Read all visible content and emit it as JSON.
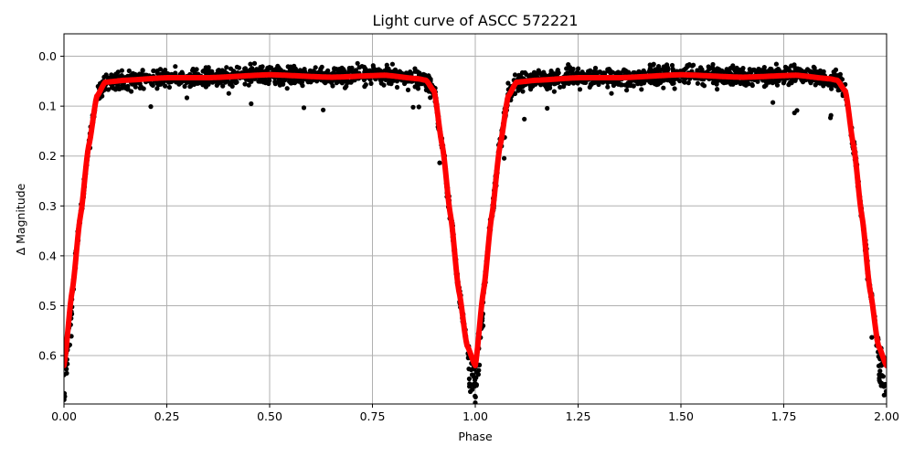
{
  "chart_data": {
    "type": "scatter",
    "title": "Light curve of ASCC 572221",
    "xlabel": "Phase",
    "ylabel": "Δ Magnitude",
    "xlim": [
      0.0,
      2.0
    ],
    "ylim": [
      0.697,
      -0.045
    ],
    "y_inverted": true,
    "grid": true,
    "legend": null,
    "x_ticks": [
      "0.00",
      "0.25",
      "0.50",
      "0.75",
      "1.00",
      "1.25",
      "1.50",
      "1.75",
      "2.00"
    ],
    "y_ticks": [
      "0.0",
      "0.1",
      "0.2",
      "0.3",
      "0.4",
      "0.5",
      "0.6"
    ],
    "series": [
      {
        "name": "observations",
        "kind": "scatter",
        "color": "#000000",
        "description": "Dense phase-folded photometry points, scatter ~±0.02 mag around model; outliers down to ~0.11 mag; eclipse minima reach ~0.69 mag"
      },
      {
        "name": "model",
        "kind": "line",
        "color": "#ff0000",
        "x": [
          0.0,
          0.02,
          0.04,
          0.06,
          0.08,
          0.1,
          0.15,
          0.25,
          0.35,
          0.5,
          0.65,
          0.78,
          0.86,
          0.88,
          0.9,
          0.92,
          0.94,
          0.96,
          0.98,
          1.0,
          1.02,
          1.04,
          1.06,
          1.08,
          1.1,
          1.15,
          1.25,
          1.35,
          1.5,
          1.65,
          1.78,
          1.86,
          1.88,
          1.9,
          1.92,
          1.94,
          1.96,
          1.98,
          2.0
        ],
        "y": [
          0.62,
          0.47,
          0.32,
          0.18,
          0.08,
          0.052,
          0.048,
          0.043,
          0.043,
          0.037,
          0.042,
          0.038,
          0.045,
          0.048,
          0.07,
          0.18,
          0.32,
          0.47,
          0.58,
          0.62,
          0.47,
          0.32,
          0.18,
          0.08,
          0.052,
          0.048,
          0.043,
          0.043,
          0.037,
          0.042,
          0.038,
          0.045,
          0.048,
          0.07,
          0.18,
          0.32,
          0.47,
          0.58,
          0.62
        ]
      }
    ]
  }
}
